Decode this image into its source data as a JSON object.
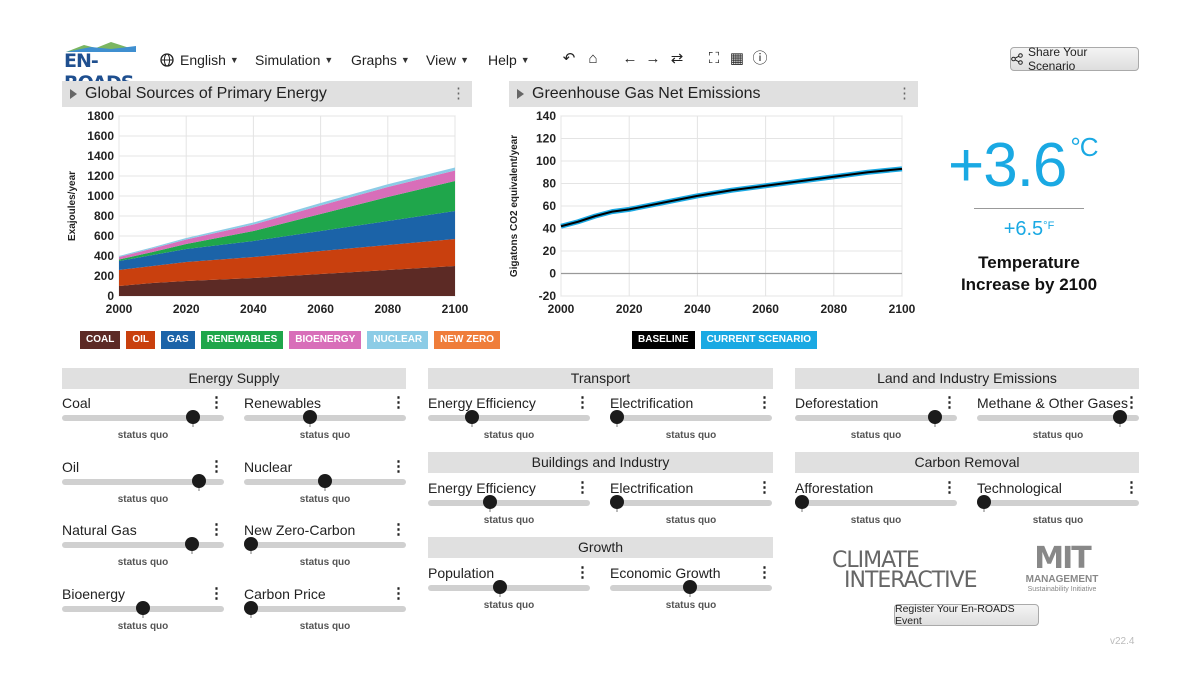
{
  "app": {
    "logo_text": "EN-ROADS",
    "version": "v22.4"
  },
  "menu": [
    {
      "label": "English",
      "icon": "globe-icon"
    },
    {
      "label": "Simulation"
    },
    {
      "label": "Graphs"
    },
    {
      "label": "View"
    },
    {
      "label": "Help"
    }
  ],
  "toolbar_icons": [
    "undo-icon",
    "home-icon",
    "back-arrow-icon",
    "forward-arrow-icon",
    "redo-icon",
    "fullscreen-icon",
    "table-icon",
    "info-icon"
  ],
  "share_button": {
    "label": "Share Your Scenario",
    "icon": "share-icon"
  },
  "graph1": {
    "title": "Global Sources of Primary Energy",
    "legend": [
      {
        "label": "COAL",
        "color": "#5c2a25"
      },
      {
        "label": "OIL",
        "color": "#c9400e"
      },
      {
        "label": "GAS",
        "color": "#1b63a8"
      },
      {
        "label": "RENEWABLES",
        "color": "#1fa64b"
      },
      {
        "label": "BIOENERGY",
        "color": "#d86eb9"
      },
      {
        "label": "NUCLEAR",
        "color": "#8ccce6"
      },
      {
        "label": "NEW ZERO",
        "color": "#ef7d3a"
      }
    ]
  },
  "graph2": {
    "title": "Greenhouse Gas Net Emissions",
    "legend": [
      {
        "label": "BASELINE",
        "color": "#000000"
      },
      {
        "label": "CURRENT SCENARIO",
        "color": "#1aa9e3"
      }
    ]
  },
  "chart_data": [
    {
      "type": "area",
      "title": "Global Sources of Primary Energy",
      "xlabel": "",
      "ylabel": "Exajoules/year",
      "x": [
        2000,
        2010,
        2020,
        2040,
        2060,
        2080,
        2100
      ],
      "xticks": [
        2000,
        2020,
        2040,
        2060,
        2080,
        2100
      ],
      "yticks": [
        0,
        200,
        400,
        600,
        800,
        1000,
        1200,
        1400,
        1600,
        1800
      ],
      "ylim": [
        0,
        1800
      ],
      "xlim": [
        2000,
        2100
      ],
      "stacked": true,
      "series": [
        {
          "name": "COAL",
          "values": [
            100,
            130,
            150,
            180,
            220,
            260,
            300
          ]
        },
        {
          "name": "OIL",
          "values": [
            160,
            170,
            190,
            210,
            230,
            250,
            270
          ]
        },
        {
          "name": "GAS",
          "values": [
            90,
            110,
            130,
            160,
            200,
            240,
            280
          ]
        },
        {
          "name": "RENEWABLES",
          "values": [
            15,
            30,
            50,
            100,
            170,
            240,
            300
          ]
        },
        {
          "name": "BIOENERGY",
          "values": [
            25,
            35,
            45,
            65,
            85,
            100,
            105
          ]
        },
        {
          "name": "NUCLEAR",
          "values": [
            10,
            12,
            15,
            20,
            25,
            28,
            30
          ]
        },
        {
          "name": "NEW ZERO",
          "values": [
            0,
            0,
            0,
            0,
            0,
            0,
            0
          ]
        }
      ],
      "grid": true
    },
    {
      "type": "line",
      "title": "Greenhouse Gas Net Emissions",
      "xlabel": "",
      "ylabel": "Gigatons CO2 equivalent/year",
      "x": [
        2000,
        2005,
        2010,
        2015,
        2020,
        2030,
        2040,
        2050,
        2060,
        2070,
        2080,
        2090,
        2100
      ],
      "xticks": [
        2000,
        2020,
        2040,
        2060,
        2080,
        2100
      ],
      "yticks": [
        -20,
        0,
        20,
        40,
        60,
        80,
        100,
        120,
        140
      ],
      "ylim": [
        -20,
        140
      ],
      "xlim": [
        2000,
        2100
      ],
      "series": [
        {
          "name": "BASELINE",
          "values": [
            42,
            46,
            51,
            55,
            57,
            63,
            69,
            74,
            78,
            82,
            86,
            90,
            93
          ]
        },
        {
          "name": "CURRENT SCENARIO",
          "values": [
            42,
            46,
            51,
            55,
            57,
            63,
            69,
            74,
            78,
            82,
            86,
            90,
            93
          ]
        }
      ],
      "grid": true
    }
  ],
  "temperature": {
    "celsius": "+3.6",
    "celsius_unit": "°C",
    "fahrenheit": "+6.5",
    "fahrenheit_unit": "°F",
    "label": "Temperature Increase by 2100"
  },
  "sections": {
    "energy_supply": "Energy Supply",
    "transport": "Transport",
    "land_industry": "Land and Industry Emissions",
    "buildings": "Buildings and Industry",
    "carbon_removal": "Carbon Removal",
    "growth": "Growth"
  },
  "sliders": [
    {
      "id": "coal",
      "label": "Coal",
      "value": 0.84,
      "status": "status quo"
    },
    {
      "id": "renewables",
      "label": "Renewables",
      "value": 0.4,
      "status": "status quo"
    },
    {
      "id": "oil",
      "label": "Oil",
      "value": 0.88,
      "status": "status quo"
    },
    {
      "id": "nuclear",
      "label": "Nuclear",
      "value": 0.5,
      "status": "status quo"
    },
    {
      "id": "natural-gas",
      "label": "Natural Gas",
      "value": 0.83,
      "status": "status quo"
    },
    {
      "id": "new-zero-carbon",
      "label": "New Zero-Carbon",
      "value": 0.0,
      "status": "status quo"
    },
    {
      "id": "bioenergy",
      "label": "Bioenergy",
      "value": 0.5,
      "status": "status quo"
    },
    {
      "id": "carbon-price",
      "label": "Carbon Price",
      "value": 0.0,
      "status": "status quo"
    },
    {
      "id": "transport-efficiency",
      "label": "Energy Efficiency",
      "value": 0.25,
      "status": "status quo"
    },
    {
      "id": "transport-electrification",
      "label": "Electrification",
      "value": 0.0,
      "status": "status quo"
    },
    {
      "id": "buildings-efficiency",
      "label": "Energy Efficiency",
      "value": 0.37,
      "status": "status quo"
    },
    {
      "id": "buildings-electrification",
      "label": "Electrification",
      "value": 0.0,
      "status": "status quo"
    },
    {
      "id": "population",
      "label": "Population",
      "value": 0.44,
      "status": "status quo"
    },
    {
      "id": "economic-growth",
      "label": "Economic Growth",
      "value": 0.49,
      "status": "status quo"
    },
    {
      "id": "deforestation",
      "label": "Deforestation",
      "value": 0.9,
      "status": "status quo"
    },
    {
      "id": "methane",
      "label": "Methane & Other Gases",
      "value": 0.92,
      "status": "status quo"
    },
    {
      "id": "afforestation",
      "label": "Afforestation",
      "value": 0.0,
      "status": "status quo"
    },
    {
      "id": "technological",
      "label": "Technological",
      "value": 0.0,
      "status": "status quo"
    }
  ],
  "partner_logos": {
    "climate_interactive_line1": "CLIMATE",
    "climate_interactive_line2": "INTERACTIVE",
    "mit_line1": "MIT",
    "mit_line2": "MANAGEMENT",
    "mit_line3": "Sustainability Initiative"
  },
  "register_button": {
    "label": "Register Your En-ROADS Event"
  }
}
